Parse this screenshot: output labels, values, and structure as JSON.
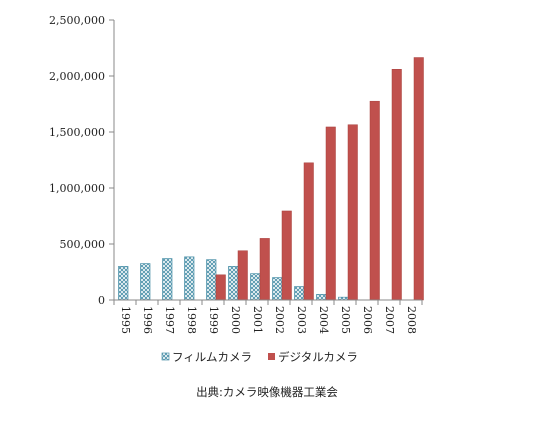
{
  "chart_data": {
    "type": "bar",
    "categories": [
      "1995",
      "1996",
      "1997",
      "1998",
      "1999",
      "2000",
      "2001",
      "2002",
      "2003",
      "2004",
      "2005",
      "2006",
      "2007",
      "2008"
    ],
    "series": [
      {
        "name": "フィルムカメラ",
        "color": "#4a90a8",
        "pattern": "crosshatch",
        "values": [
          300000,
          325000,
          370000,
          385000,
          360000,
          300000,
          235000,
          200000,
          120000,
          50000,
          25000,
          0,
          0,
          0
        ]
      },
      {
        "name": "デジタルカメラ",
        "color": "#c0504d",
        "values": [
          0,
          0,
          0,
          0,
          225000,
          440000,
          550000,
          795000,
          1225000,
          1545000,
          1565000,
          1775000,
          2060000,
          2165000
        ]
      }
    ],
    "ylim": [
      0,
      2500000
    ],
    "yticks": [
      0,
      500000,
      1000000,
      1500000,
      2000000,
      2500000
    ],
    "ytick_labels": [
      "0",
      "500,000",
      "1,000,000",
      "1,500,000",
      "2,000,000",
      "2,500,000"
    ],
    "legend_position": "bottom",
    "grid": false,
    "source_note": "出典:カメラ映像機器工業会"
  }
}
